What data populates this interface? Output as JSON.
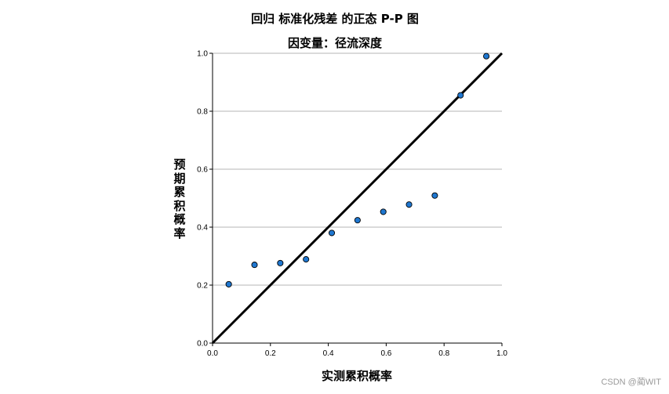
{
  "chart_data": {
    "type": "scatter",
    "title": "回归 标准化残差 的正态 P-P 图",
    "subtitle": "因变量：径流深度",
    "xlabel": "实测累积概率",
    "ylabel": "预期累积概率",
    "xlim": [
      0.0,
      1.0
    ],
    "ylim": [
      0.0,
      1.0
    ],
    "x_ticks": [
      "0.0",
      "0.2",
      "0.4",
      "0.6",
      "0.8",
      "1.0"
    ],
    "y_ticks": [
      "0.0",
      "0.2",
      "0.4",
      "0.6",
      "0.8",
      "1.0"
    ],
    "grid": "horizontal",
    "reference_line": {
      "from": [
        0.0,
        0.0
      ],
      "to": [
        1.0,
        1.0
      ],
      "color": "#000000"
    },
    "points": [
      {
        "x": 0.056,
        "y": 0.203
      },
      {
        "x": 0.145,
        "y": 0.27
      },
      {
        "x": 0.234,
        "y": 0.276
      },
      {
        "x": 0.323,
        "y": 0.289
      },
      {
        "x": 0.412,
        "y": 0.38
      },
      {
        "x": 0.501,
        "y": 0.424
      },
      {
        "x": 0.59,
        "y": 0.453
      },
      {
        "x": 0.679,
        "y": 0.478
      },
      {
        "x": 0.768,
        "y": 0.509
      },
      {
        "x": 0.857,
        "y": 0.855
      },
      {
        "x": 0.946,
        "y": 0.99
      }
    ],
    "point_color": "#1f77d0",
    "point_edge_color": "#000000"
  },
  "watermark": "CSDN @蔺WIT"
}
